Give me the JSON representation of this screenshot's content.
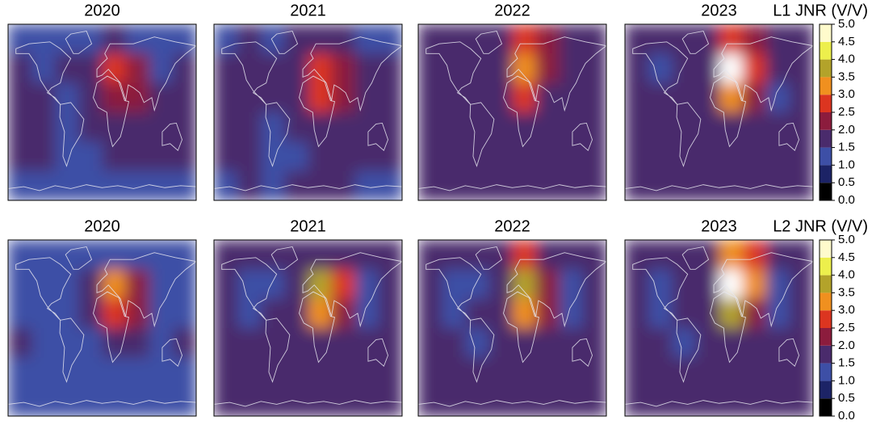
{
  "chart_data": [
    {
      "type": "heatmap",
      "colorbar_title": "L1 JNR (V/V)",
      "zlim": [
        0,
        5
      ],
      "zticks": [
        {
          "value": 0,
          "label": "0.0"
        },
        0.5,
        {
          "value": 1,
          "label": "1.0"
        },
        1.5,
        {
          "value": 2,
          "label": "2.0"
        },
        2.5,
        {
          "value": 3,
          "label": "3.0"
        },
        3.5,
        {
          "value": 4,
          "label": "4.0"
        },
        4.5,
        {
          "value": 5,
          "label": "5.0"
        }
      ],
      "colors": [
        "#000000",
        "#1c2366",
        "#3d4fa6",
        "#4a2b6c",
        "#8c1c3d",
        "#dc3520",
        "#f0901f",
        "#b3a32a",
        "#edef4c",
        "#fffbcc"
      ],
      "over_color": "#ffffff",
      "panels": [
        {
          "title": "2020",
          "values": [
            [
              1.3,
              1.4,
              1.3,
              1.4,
              1.5,
              1.4,
              1.3,
              1.3
            ],
            [
              1.6,
              1.4,
              1.5,
              1.7,
              2.6,
              2.2,
              1.4,
              1.6
            ],
            [
              1.7,
              1.6,
              1.4,
              1.6,
              2.4,
              2.0,
              1.5,
              1.6
            ],
            [
              1.6,
              1.6,
              1.3,
              1.5,
              1.6,
              1.6,
              1.5,
              1.6
            ],
            [
              1.5,
              1.6,
              1.4,
              1.4,
              1.5,
              1.5,
              1.5,
              1.6
            ],
            [
              1.3,
              1.4,
              1.3,
              1.4,
              1.4,
              1.4,
              1.3,
              1.4
            ]
          ]
        },
        {
          "title": "2021",
          "values": [
            [
              1.4,
              1.5,
              1.4,
              1.5,
              1.7,
              1.6,
              1.4,
              1.4
            ],
            [
              1.6,
              1.5,
              1.5,
              1.7,
              2.9,
              2.3,
              1.5,
              1.6
            ],
            [
              1.7,
              1.6,
              1.5,
              1.6,
              2.6,
              2.1,
              1.6,
              1.6
            ],
            [
              1.6,
              1.6,
              1.4,
              1.5,
              1.7,
              1.6,
              1.6,
              1.6
            ],
            [
              1.6,
              1.6,
              1.4,
              1.4,
              1.6,
              1.6,
              1.6,
              1.6
            ],
            [
              1.4,
              1.5,
              1.4,
              1.5,
              1.5,
              1.5,
              1.4,
              1.4
            ]
          ]
        },
        {
          "title": "2022",
          "values": [
            [
              1.7,
              1.7,
              1.7,
              1.8,
              2.8,
              2.0,
              1.7,
              1.7
            ],
            [
              1.7,
              1.7,
              1.7,
              1.8,
              3.2,
              2.2,
              1.7,
              1.7
            ],
            [
              1.7,
              1.7,
              1.7,
              1.7,
              2.7,
              1.9,
              1.7,
              1.7
            ],
            [
              1.7,
              1.7,
              1.7,
              1.7,
              1.7,
              1.7,
              1.7,
              1.7
            ],
            [
              1.7,
              1.7,
              1.7,
              1.7,
              1.7,
              1.7,
              1.7,
              1.7
            ],
            [
              1.7,
              1.7,
              1.7,
              1.7,
              1.7,
              1.7,
              1.7,
              1.7
            ]
          ]
        },
        {
          "title": "2023",
          "values": [
            [
              1.6,
              1.6,
              1.6,
              1.7,
              2.8,
              2.3,
              1.6,
              1.6
            ],
            [
              1.6,
              1.4,
              1.6,
              1.8,
              5.3,
              2.6,
              1.5,
              1.6
            ],
            [
              1.6,
              1.5,
              1.6,
              1.7,
              3.1,
              2.0,
              1.4,
              1.6
            ],
            [
              1.6,
              1.6,
              1.5,
              1.6,
              1.7,
              1.6,
              1.5,
              1.6
            ],
            [
              1.6,
              1.6,
              1.5,
              1.6,
              1.6,
              1.6,
              1.6,
              1.6
            ],
            [
              1.5,
              1.5,
              1.5,
              1.5,
              1.5,
              1.5,
              1.5,
              1.5
            ]
          ]
        }
      ]
    },
    {
      "type": "heatmap",
      "colorbar_title": "L2 JNR (V/V)",
      "zlim": [
        0,
        5
      ],
      "zticks": [
        {
          "value": 0,
          "label": "0.0"
        },
        0.5,
        {
          "value": 1,
          "label": "1.0"
        },
        1.5,
        {
          "value": 2,
          "label": "2.0"
        },
        2.5,
        {
          "value": 3,
          "label": "3.0"
        },
        3.5,
        {
          "value": 4,
          "label": "4.0"
        },
        4.5,
        {
          "value": 5,
          "label": "5.0"
        }
      ],
      "colors": [
        "#000000",
        "#1c2366",
        "#3d4fa6",
        "#4a2b6c",
        "#8c1c3d",
        "#dc3520",
        "#f0901f",
        "#b3a32a",
        "#edef4c",
        "#fffbcc"
      ],
      "over_color": "#ffffff",
      "panels": [
        {
          "title": "2020",
          "values": [
            [
              1.3,
              1.3,
              1.3,
              1.3,
              1.4,
              1.3,
              1.3,
              1.3
            ],
            [
              1.3,
              1.2,
              1.3,
              1.6,
              3.2,
              2.4,
              1.2,
              1.3
            ],
            [
              1.4,
              1.3,
              1.3,
              1.5,
              2.9,
              2.1,
              1.3,
              1.3
            ],
            [
              1.5,
              1.4,
              1.3,
              1.4,
              1.6,
              1.5,
              1.4,
              1.5
            ],
            [
              1.3,
              1.3,
              1.3,
              1.3,
              1.3,
              1.3,
              1.3,
              1.3
            ],
            [
              1.3,
              1.3,
              1.3,
              1.3,
              1.3,
              1.3,
              1.3,
              1.3
            ]
          ]
        },
        {
          "title": "2021",
          "values": [
            [
              1.6,
              1.5,
              1.5,
              1.6,
              1.7,
              1.6,
              1.6,
              1.6
            ],
            [
              1.6,
              1.2,
              1.4,
              1.7,
              3.6,
              2.6,
              1.2,
              1.6
            ],
            [
              1.7,
              1.3,
              1.5,
              1.6,
              3.3,
              2.3,
              1.3,
              1.7
            ],
            [
              1.7,
              1.6,
              1.5,
              1.6,
              1.8,
              1.7,
              1.6,
              1.7
            ],
            [
              1.7,
              1.7,
              1.7,
              1.7,
              1.7,
              1.7,
              1.7,
              1.7
            ],
            [
              1.7,
              1.7,
              1.7,
              1.7,
              1.7,
              1.7,
              1.7,
              1.7
            ]
          ]
        },
        {
          "title": "2022",
          "values": [
            [
              1.6,
              1.5,
              1.5,
              1.6,
              2.8,
              1.8,
              1.6,
              1.6
            ],
            [
              1.6,
              1.2,
              1.4,
              1.7,
              3.6,
              2.4,
              1.3,
              1.6
            ],
            [
              1.7,
              1.3,
              1.5,
              1.6,
              3.2,
              2.1,
              1.3,
              1.7
            ],
            [
              1.7,
              1.6,
              1.3,
              1.6,
              1.7,
              1.7,
              1.6,
              1.7
            ],
            [
              1.7,
              1.7,
              1.7,
              1.7,
              1.7,
              1.7,
              1.7,
              1.7
            ],
            [
              1.7,
              1.7,
              1.7,
              1.7,
              1.7,
              1.7,
              1.7,
              1.7
            ]
          ]
        },
        {
          "title": "2023",
          "values": [
            [
              1.6,
              1.6,
              1.6,
              1.7,
              3.3,
              2.6,
              1.6,
              1.6
            ],
            [
              1.6,
              1.3,
              1.5,
              1.8,
              5.4,
              3.0,
              1.2,
              1.6
            ],
            [
              1.7,
              1.3,
              1.5,
              1.7,
              3.6,
              2.4,
              1.3,
              1.7
            ],
            [
              1.7,
              1.6,
              1.3,
              1.6,
              1.8,
              1.7,
              1.6,
              1.7
            ],
            [
              1.7,
              1.7,
              1.7,
              1.7,
              1.7,
              1.7,
              1.7,
              1.7
            ],
            [
              1.7,
              1.7,
              1.7,
              1.7,
              1.7,
              1.7,
              1.7,
              1.7
            ]
          ]
        }
      ]
    }
  ]
}
